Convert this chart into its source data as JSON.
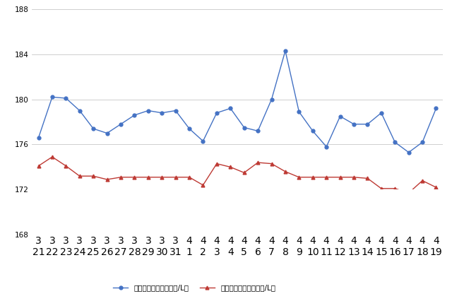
{
  "top_labels": [
    "3",
    "3",
    "3",
    "3",
    "3",
    "3",
    "3",
    "3",
    "3",
    "3",
    "3",
    "4",
    "4",
    "4",
    "4",
    "4",
    "4",
    "4",
    "4",
    "4",
    "4",
    "4",
    "4",
    "4",
    "4",
    "4",
    "4",
    "4",
    "4",
    "4"
  ],
  "bot_labels": [
    "21",
    "22",
    "23",
    "24",
    "25",
    "26",
    "27",
    "28",
    "29",
    "30",
    "31",
    "1",
    "2",
    "3",
    "4",
    "5",
    "6",
    "7",
    "8",
    "9",
    "10",
    "11",
    "12",
    "13",
    "14",
    "15",
    "16",
    "17",
    "18",
    "19"
  ],
  "blue_values": [
    176.6,
    180.2,
    180.1,
    179.0,
    177.4,
    177.0,
    177.8,
    178.6,
    179.0,
    178.8,
    179.0,
    177.4,
    176.3,
    178.8,
    179.2,
    177.5,
    177.2,
    180.0,
    184.3,
    178.9,
    177.2,
    175.8,
    178.5,
    177.8,
    177.8,
    178.8,
    176.2,
    175.3,
    176.2,
    179.2
  ],
  "red_values": [
    174.1,
    174.9,
    174.1,
    173.2,
    173.2,
    172.9,
    173.1,
    173.1,
    173.1,
    173.1,
    173.1,
    173.1,
    172.4,
    174.3,
    174.0,
    173.5,
    174.4,
    174.3,
    173.6,
    173.1,
    173.1,
    173.1,
    173.1,
    173.1,
    173.0,
    172.1,
    172.1,
    171.7,
    172.8,
    172.2
  ],
  "blue_color": "#4472c4",
  "red_color": "#be3a34",
  "ylim_main": [
    172,
    188
  ],
  "ylim_dummy": [
    168,
    172
  ],
  "yticks_main": [
    172,
    176,
    180,
    184,
    188
  ],
  "yticks_dummy": [
    168
  ],
  "legend1": "ハイオク看板価格（円/L）",
  "legend2": "ハイオク実売価格（円/L）",
  "bg_color": "#ffffff",
  "grid_color": "#c8c8c8"
}
